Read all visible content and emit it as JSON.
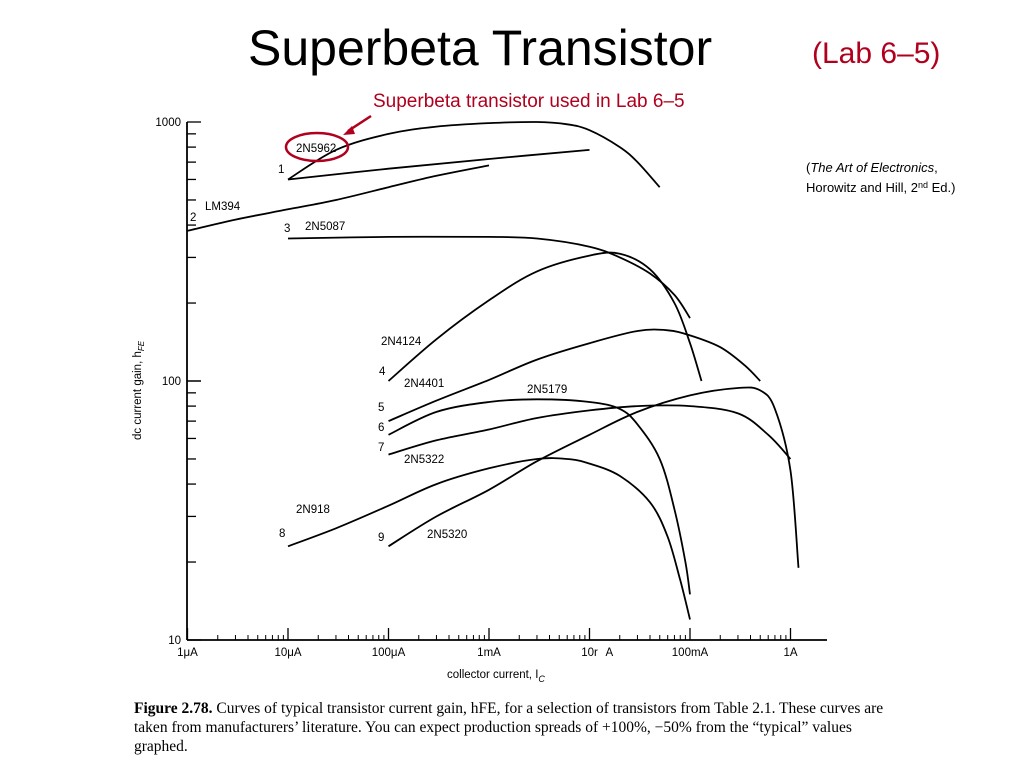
{
  "slide": {
    "title": "Superbeta Transistor",
    "title_lab": "(Lab 6–5)",
    "callout": "Superbeta transistor used in Lab 6–5",
    "callout_color": "#b0001e",
    "citation_line1_open": "(",
    "citation_book": "The Art of Electronics",
    "citation_line1_close": ",",
    "citation_line2_a": "Horowitz and Hill, 2",
    "citation_sup": "nd",
    "citation_line2_b": " Ed.)"
  },
  "caption": {
    "label": "Figure 2.78.",
    "text": "Curves of typical transistor current gain, hFE, for a selection of transistors from Table 2.1. These curves are taken from manufacturers’ literature. You can expect production spreads of +100%, −50% from the “typical” values graphed."
  },
  "chart_data": {
    "type": "line",
    "xscale": "log",
    "yscale": "log",
    "xlabel": "collector current, I",
    "xlabel_sub": "C",
    "ylabel": "dc current gain, h",
    "ylabel_sub": "FE",
    "xlim": [
      1e-06,
      1.5
    ],
    "ylim": [
      10,
      1000
    ],
    "x_ticks": [
      {
        "value": 1e-06,
        "label": "1μA"
      },
      {
        "value": 1e-05,
        "label": "10μA"
      },
      {
        "value": 0.0001,
        "label": "100μA"
      },
      {
        "value": 0.001,
        "label": "1mA"
      },
      {
        "value": 0.01,
        "label": "10r"
      },
      {
        "value": 0.1,
        "label": "100mA"
      },
      {
        "value": 1,
        "label": "1A"
      }
    ],
    "x_tick_stray": "Α",
    "y_ticks": [
      {
        "value": 10,
        "label": "10"
      },
      {
        "value": 100,
        "label": "100"
      },
      {
        "value": 1000,
        "label": "1000"
      }
    ],
    "series": [
      {
        "number": "1",
        "name": "2N5962",
        "x": [
          1e-05,
          3e-05,
          0.0001,
          0.0003,
          0.001,
          0.003,
          0.006,
          0.01,
          0.02,
          0.03,
          0.05
        ],
        "y": [
          600,
          780,
          900,
          960,
          990,
          1000,
          980,
          930,
          800,
          700,
          560
        ]
      },
      {
        "number": "",
        "name": "",
        "x": [
          1e-05,
          0.0001,
          0.001,
          0.01
        ],
        "y": [
          600,
          660,
          720,
          780
        ]
      },
      {
        "number": "2",
        "name": "LM394",
        "x": [
          1e-06,
          3e-06,
          1e-05,
          3e-05,
          0.0001,
          0.0003,
          0.001
        ],
        "y": [
          380,
          420,
          460,
          500,
          560,
          620,
          680
        ]
      },
      {
        "number": "3",
        "name": "2N5087",
        "x": [
          1e-05,
          0.0001,
          0.001,
          0.003,
          0.01,
          0.02,
          0.04,
          0.07,
          0.1
        ],
        "y": [
          355,
          360,
          360,
          355,
          330,
          300,
          260,
          215,
          175
        ]
      },
      {
        "number": "4",
        "name": "2N4124",
        "x": [
          0.0001,
          0.0003,
          0.001,
          0.003,
          0.01,
          0.02,
          0.04,
          0.07,
          0.1,
          0.13
        ],
        "y": [
          100,
          145,
          205,
          265,
          305,
          310,
          270,
          200,
          140,
          100
        ]
      },
      {
        "number": "5",
        "name": "2N4401",
        "x": [
          0.0001,
          0.0003,
          0.001,
          0.003,
          0.01,
          0.03,
          0.06,
          0.1,
          0.2,
          0.35,
          0.5
        ],
        "y": [
          70,
          84,
          101,
          121,
          140,
          156,
          157,
          150,
          135,
          115,
          100
        ]
      },
      {
        "number": "6",
        "name": "2N5179",
        "x": [
          0.0001,
          0.0003,
          0.001,
          0.003,
          0.01,
          0.02,
          0.03,
          0.05,
          0.07,
          0.09,
          0.1
        ],
        "y": [
          62,
          76,
          83,
          85,
          83,
          78,
          68,
          50,
          32,
          20,
          15
        ]
      },
      {
        "number": "7",
        "name": "2N5322",
        "x": [
          0.0001,
          0.0003,
          0.001,
          0.003,
          0.01,
          0.03,
          0.1,
          0.3,
          0.6,
          1
        ],
        "y": [
          52,
          59,
          65,
          72,
          77,
          80,
          80,
          75,
          62,
          50
        ]
      },
      {
        "number": "8",
        "name": "2N918",
        "x": [
          1e-05,
          3e-05,
          0.0001,
          0.0003,
          0.001,
          0.003,
          0.006,
          0.01,
          0.02,
          0.04,
          0.06,
          0.08,
          0.1
        ],
        "y": [
          23,
          27,
          33,
          40,
          46,
          50,
          50,
          48,
          43,
          34,
          25,
          17,
          12
        ]
      },
      {
        "number": "9",
        "name": "2N5320",
        "x": [
          0.0001,
          0.0003,
          0.001,
          0.003,
          0.01,
          0.03,
          0.1,
          0.3,
          0.5,
          0.7,
          1,
          1.2
        ],
        "y": [
          23,
          30,
          38,
          49,
          62,
          76,
          88,
          94,
          92,
          78,
          45,
          19
        ]
      }
    ]
  }
}
